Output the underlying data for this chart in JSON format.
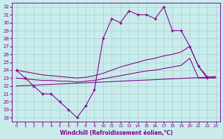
{
  "xlabel": "Windchill (Refroidissement éolien,°C)",
  "bg_color": "#c8ecec",
  "line_color": "#880088",
  "grid_color": "#aacccc",
  "ylim": [
    17.5,
    32.5
  ],
  "xlim": [
    -0.5,
    23.5
  ],
  "yticks": [
    18,
    19,
    20,
    21,
    22,
    23,
    24,
    25,
    26,
    27,
    28,
    29,
    30,
    31,
    32
  ],
  "xticks": [
    0,
    1,
    2,
    3,
    4,
    5,
    6,
    7,
    8,
    9,
    10,
    11,
    12,
    13,
    14,
    15,
    16,
    17,
    18,
    19,
    20,
    21,
    22,
    23
  ],
  "line1_x": [
    0,
    1,
    2,
    3,
    4,
    5,
    6,
    7,
    8,
    9,
    10,
    11,
    12,
    13,
    14,
    15,
    16,
    17,
    18,
    19,
    20,
    21,
    22
  ],
  "line1_y": [
    24,
    23,
    22,
    21,
    21,
    20,
    19,
    18,
    19.5,
    21.5,
    28,
    30.5,
    30,
    31.5,
    31,
    31,
    30.5,
    32,
    29,
    29,
    27,
    24.5,
    23
  ],
  "line2_x": [
    0,
    1,
    2,
    3,
    4,
    5,
    6,
    7,
    8,
    9,
    10,
    11,
    12,
    13,
    14,
    15,
    16,
    17,
    18,
    19,
    20,
    21,
    22,
    23
  ],
  "line2_y": [
    24,
    23.8,
    23.6,
    23.4,
    23.3,
    23.2,
    23.1,
    23.0,
    23.1,
    23.3,
    23.6,
    24.0,
    24.4,
    24.7,
    25.0,
    25.3,
    25.5,
    25.8,
    26.0,
    26.3,
    27.0,
    24.5,
    23.2,
    23.0
  ],
  "line3_x": [
    0,
    1,
    2,
    3,
    4,
    5,
    6,
    7,
    8,
    9,
    10,
    11,
    12,
    13,
    14,
    15,
    16,
    17,
    18,
    19,
    20,
    21,
    22,
    23
  ],
  "line3_y": [
    23.0,
    22.9,
    22.8,
    22.7,
    22.7,
    22.6,
    22.6,
    22.5,
    22.6,
    22.7,
    22.9,
    23.1,
    23.3,
    23.5,
    23.7,
    23.9,
    24.0,
    24.2,
    24.4,
    24.6,
    25.5,
    23.0,
    23.0,
    23.0
  ],
  "line4_x": [
    0,
    1,
    2,
    3,
    4,
    5,
    6,
    7,
    8,
    9,
    10,
    11,
    12,
    13,
    14,
    15,
    16,
    17,
    18,
    19,
    20,
    21,
    22,
    23
  ],
  "line4_y": [
    22.0,
    22.05,
    22.1,
    22.15,
    22.2,
    22.25,
    22.3,
    22.35,
    22.4,
    22.45,
    22.5,
    22.55,
    22.6,
    22.65,
    22.7,
    22.75,
    22.8,
    22.85,
    22.9,
    22.95,
    23.0,
    23.05,
    23.1,
    23.2
  ]
}
